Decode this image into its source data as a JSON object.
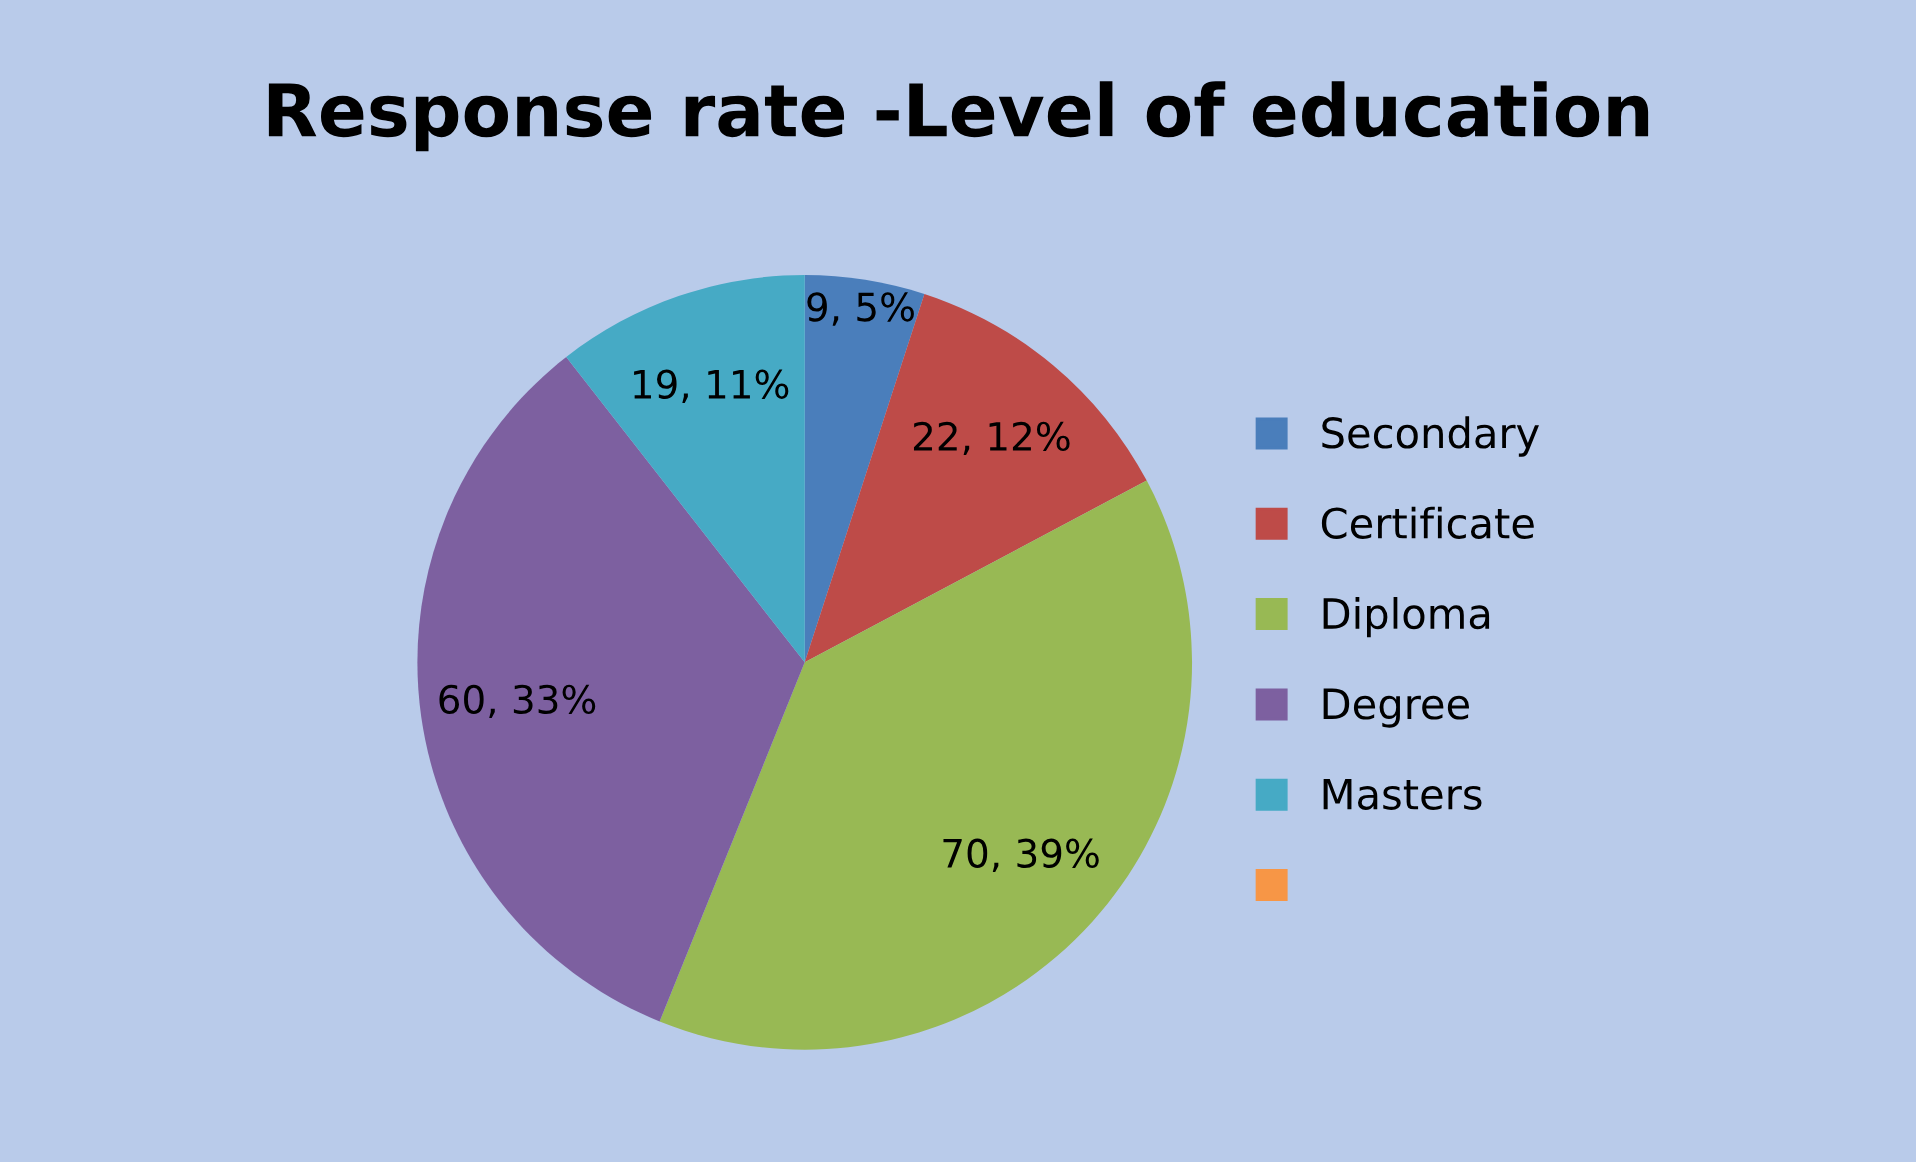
{
  "chart_data": {
    "type": "pie",
    "title": "Response rate -Level of education",
    "categories": [
      "Secondary",
      "Certificate",
      "Diploma",
      "Degree",
      "Masters",
      null
    ],
    "values": [
      9,
      22,
      70,
      60,
      19,
      null
    ],
    "colors": [
      "#4a7ebb",
      "#be4b48",
      "#98b954",
      "#7d60a0",
      "#46aac5",
      "#f79646"
    ],
    "value_labels": [
      "9, 5%",
      "22, 12%",
      "70, 39%",
      "60, 33%",
      "19, 11%",
      null
    ],
    "legend": "right"
  }
}
